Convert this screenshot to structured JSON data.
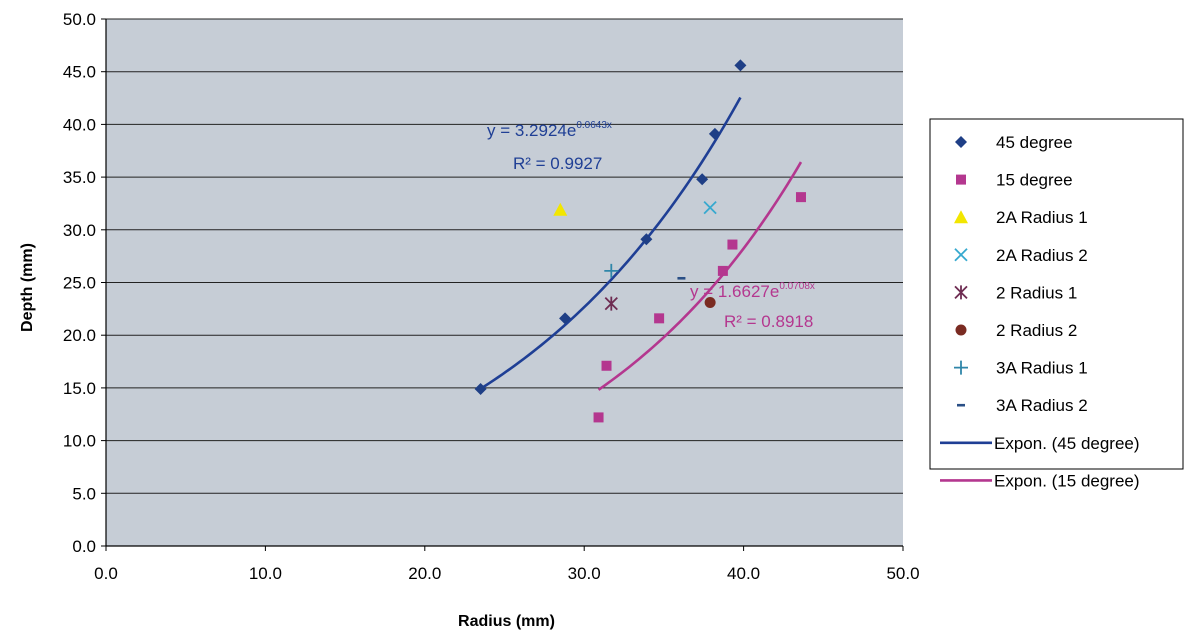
{
  "chart_data": {
    "type": "scatter",
    "xlabel": "Radius (mm)",
    "ylabel": "Depth (mm)",
    "xlim": [
      0,
      50
    ],
    "ylim": [
      0,
      50
    ],
    "x_ticks": [
      "0.0",
      "10.0",
      "20.0",
      "30.0",
      "40.0",
      "50.0"
    ],
    "y_ticks": [
      "0.0",
      "5.0",
      "10.0",
      "15.0",
      "20.0",
      "25.0",
      "30.0",
      "35.0",
      "40.0",
      "45.0",
      "50.0"
    ],
    "grid": "horizontal",
    "plot_background": "#c6cdd6",
    "legend_position": "right",
    "series": [
      {
        "name": "45 degree",
        "marker": "diamond",
        "color": "#1f3f86",
        "points": [
          [
            23.5,
            14.9
          ],
          [
            28.8,
            21.6
          ],
          [
            33.9,
            29.1
          ],
          [
            37.4,
            34.8
          ],
          [
            38.2,
            39.1
          ],
          [
            39.8,
            45.6
          ]
        ]
      },
      {
        "name": "15 degree",
        "marker": "square",
        "color": "#b4378f",
        "points": [
          [
            30.9,
            12.2
          ],
          [
            31.4,
            17.1
          ],
          [
            34.7,
            21.6
          ],
          [
            38.7,
            26.1
          ],
          [
            39.3,
            28.6
          ],
          [
            43.6,
            33.1
          ]
        ]
      },
      {
        "name": "2A Radius 1",
        "marker": "triangle",
        "color": "#f2e600",
        "points": [
          [
            28.5,
            31.9
          ]
        ]
      },
      {
        "name": "2A Radius 2",
        "marker": "x",
        "color": "#37a9cf",
        "points": [
          [
            37.9,
            32.1
          ]
        ]
      },
      {
        "name": "2 Radius 1",
        "marker": "star",
        "color": "#6e2c52",
        "points": [
          [
            31.7,
            23.0
          ]
        ]
      },
      {
        "name": "2 Radius 2",
        "marker": "circle",
        "color": "#7a2b22",
        "points": [
          [
            37.9,
            23.1
          ]
        ]
      },
      {
        "name": "3A Radius 1",
        "marker": "plus",
        "color": "#2f86a9",
        "points": [
          [
            31.7,
            26.1
          ]
        ]
      },
      {
        "name": "3A Radius 2",
        "marker": "dash",
        "color": "#2a4f86",
        "points": [
          [
            36.1,
            25.4
          ]
        ]
      }
    ],
    "trendlines": [
      {
        "name": "Expon. (45 degree)",
        "color": "#1f3f95",
        "a": 3.2924,
        "b": 0.0643,
        "x_range": [
          23.5,
          39.8
        ],
        "eq": "y = 3.2924e",
        "eq_exp": "0.0643x",
        "r2": "R² = 0.9927"
      },
      {
        "name": "Expon. (15 degree)",
        "color": "#b4378f",
        "a": 1.6627,
        "b": 0.0708,
        "x_range": [
          30.9,
          43.6
        ],
        "eq": "y = 1.6627e",
        "eq_exp": "0.0708x",
        "r2": "R² = 0.8918"
      }
    ]
  }
}
